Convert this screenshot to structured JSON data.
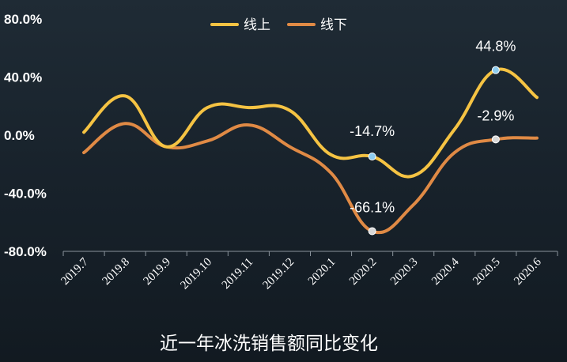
{
  "chart_data": {
    "type": "line",
    "title": "近一年冰洗销售额同比变化",
    "categories": [
      "2019.7",
      "2019.8",
      "2019.9",
      "2019.10",
      "2019.11",
      "2019.12",
      "2020.1",
      "2020.2",
      "2020.3",
      "2020.4",
      "2020.5",
      "2020.6"
    ],
    "series": [
      {
        "name": "线上",
        "color": "#f5c343",
        "values": [
          2,
          27,
          -8,
          19,
          19,
          17,
          -13.5,
          -14.7,
          -28,
          4,
          44.8,
          26
        ]
      },
      {
        "name": "线下",
        "color": "#e08a45",
        "values": [
          -12,
          8,
          -8,
          -4,
          7,
          -8,
          -26,
          -66.1,
          -48,
          -12,
          -2.9,
          -2
        ]
      }
    ],
    "ylim": [
      -80,
      80
    ],
    "yticks": [
      "80.0%",
      "40.0%",
      "0.0%",
      "-40.0%",
      "-80.0%"
    ],
    "ytick_values": [
      80,
      40,
      0,
      -40,
      -80
    ],
    "data_labels": [
      {
        "series": 0,
        "index": 7,
        "text": "-14.7%"
      },
      {
        "series": 1,
        "index": 7,
        "text": "-66.1%"
      },
      {
        "series": 0,
        "index": 10,
        "text": "44.8%"
      },
      {
        "series": 1,
        "index": 10,
        "text": "-2.9%"
      }
    ],
    "grid": false,
    "legend": "top-center"
  }
}
